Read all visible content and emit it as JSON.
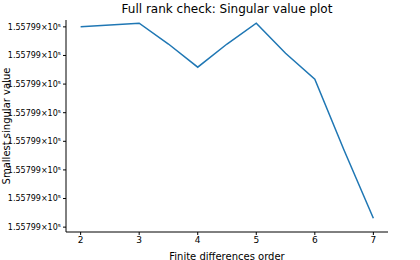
{
  "chart_data": {
    "type": "line",
    "title": "Full rank check: Singular value plot",
    "x_label": "Finite differences order",
    "y_label": "Smallest singular value",
    "x": [
      2,
      3,
      3.5,
      4,
      4.5,
      5,
      5.5,
      6,
      6.5,
      7
    ],
    "values": [
      155799.3,
      155799.313,
      155799.24,
      155799.159,
      155799.24,
      155799.313,
      155799.208,
      155799.117,
      155798.869,
      155798.631
    ],
    "color": "#1f77b4",
    "xlim": [
      1.75,
      7.25
    ],
    "xticks": [
      2,
      3,
      4,
      5,
      6,
      7
    ],
    "ylim": [
      155798.583,
      155799.324
    ],
    "yticks": [
      {
        "value": 155798.6,
        "label": "1.55799×10⁵"
      },
      {
        "value": 155798.7,
        "label": "1.55799×10⁵"
      },
      {
        "value": 155798.8,
        "label": "1.55799×10⁵"
      },
      {
        "value": 155798.9,
        "label": "1.55799×10⁵"
      },
      {
        "value": 155799.0,
        "label": "1.55799×10⁵"
      },
      {
        "value": 155799.1,
        "label": "1.55799×10⁵"
      },
      {
        "value": 155799.2,
        "label": "1.55799×10⁵"
      },
      {
        "value": 155799.3,
        "label": "1.55799×10⁵"
      }
    ],
    "grid": false
  }
}
